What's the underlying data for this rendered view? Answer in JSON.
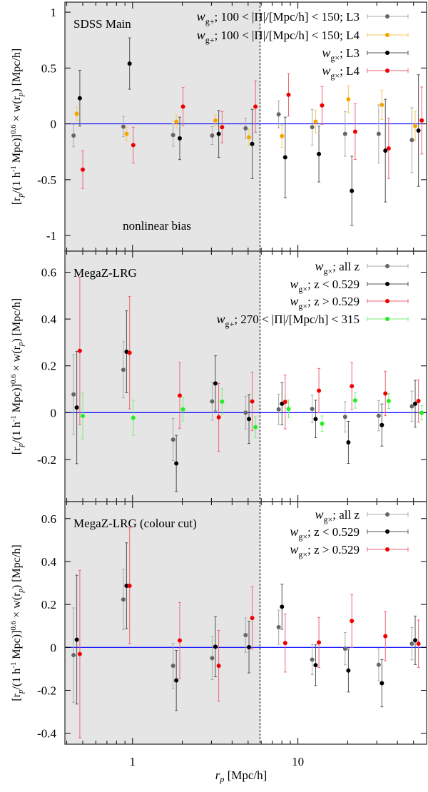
{
  "xlabel": {
    "sym": "r",
    "sub": "p",
    "rest": " [Mpc/h]"
  },
  "ylabel": {
    "a": "[r",
    "a_sub": "p",
    "b": "/(1 h",
    "b_sup": "-1",
    "c": " Mpc)]",
    "c_sup": "0.6",
    "d": " × w(r",
    "d_sub": "p",
    "e": ") [Mpc/h]"
  },
  "xscale": "log",
  "xlim": [
    0.39,
    60
  ],
  "xticks": [
    {
      "v": 1,
      "label": "1"
    },
    {
      "v": 10,
      "label": "10"
    }
  ],
  "nonlinear_cut": 5.9,
  "zero_line_color": "#0000ff",
  "shade_color": "#e5e5e5",
  "chart_data": [
    {
      "type": "scatter",
      "title": "SDSS Main",
      "annotation": "nonlinear bias",
      "ylim": [
        -1.14,
        1.09
      ],
      "yticks": [
        {
          "v": 1,
          "label": "1"
        },
        {
          "v": 0.5,
          "label": "0.5"
        },
        {
          "v": 0,
          "label": "0"
        },
        {
          "v": -0.5,
          "label": "-0.5"
        },
        {
          "v": -1,
          "label": "-1"
        }
      ],
      "series": [
        {
          "sym": "w",
          "sub": "g+",
          "name": "; 100 < |Π|/[Mpc/h] < 150; L3",
          "color": "#666666",
          "bar": "#aaaaaa",
          "x": [
            0.44,
            0.88,
            1.76,
            3.03,
            4.83,
            7.65,
            12.2,
            19.3,
            30.8,
            48.9
          ],
          "y": [
            -0.105,
            -0.025,
            -0.1,
            -0.105,
            -0.04,
            0.085,
            -0.03,
            -0.09,
            -0.09,
            -0.145
          ],
          "err": [
            0.1,
            0.09,
            0.1,
            0.08,
            0.09,
            0.12,
            0.16,
            0.2,
            0.26,
            0.29
          ]
        },
        {
          "sym": "w",
          "sub": "g+",
          "name": "; 100 < |Π|/[Mpc/h] < 150; L4",
          "color": "#f5a500",
          "bar": "#f7c860",
          "x": [
            0.46,
            0.92,
            1.84,
            3.17,
            5.06,
            8.01,
            12.8,
            20.2,
            32.2,
            51.2
          ],
          "y": [
            0.09,
            -0.09,
            0.02,
            0.03,
            -0.12,
            -0.11,
            0.02,
            0.22,
            0.17,
            -0.02
          ],
          "err": [
            0.06,
            0.06,
            0.06,
            0.05,
            0.07,
            0.1,
            0.1,
            0.12,
            0.13,
            0.13
          ]
        },
        {
          "sym": "w",
          "sub": "g×",
          "name": "; L3",
          "color": "#000000",
          "bar": "#555555",
          "x": [
            0.48,
            0.96,
            1.93,
            3.32,
            5.29,
            8.38,
            13.4,
            21.2,
            33.8,
            53.6
          ],
          "y": [
            0.23,
            0.54,
            -0.13,
            -0.09,
            -0.18,
            -0.3,
            -0.27,
            -0.6,
            -0.24,
            -0.06
          ],
          "err": [
            0.25,
            0.23,
            0.19,
            0.21,
            0.31,
            0.36,
            0.25,
            0.31,
            0.46,
            0.5
          ]
        },
        {
          "sym": "w",
          "sub": "g×",
          "name": "; L4",
          "color": "#ee0000",
          "bar": "#ee6677",
          "x": [
            0.5,
            1.01,
            2.02,
            3.48,
            5.54,
            8.78,
            14.0,
            22.2,
            35.4,
            56.1
          ],
          "y": [
            -0.41,
            -0.19,
            0.155,
            -0.03,
            0.155,
            0.26,
            0.165,
            -0.07,
            -0.22,
            0.03
          ],
          "err": [
            0.17,
            0.16,
            0.17,
            0.14,
            0.23,
            0.19,
            0.17,
            0.25,
            0.27,
            0.3
          ]
        }
      ]
    },
    {
      "type": "scatter",
      "title": "MegaZ-LRG",
      "ylim": [
        -0.38,
        0.69
      ],
      "yticks": [
        {
          "v": 0.6,
          "label": "0.6"
        },
        {
          "v": 0.4,
          "label": "0.4"
        },
        {
          "v": 0.2,
          "label": "0.2"
        },
        {
          "v": 0,
          "label": "0"
        },
        {
          "v": -0.2,
          "label": "-0.2"
        }
      ],
      "series": [
        {
          "sym": "w",
          "sub": "g×",
          "name": "; all z",
          "color": "#666666",
          "bar": "#aaaaaa",
          "x": [
            0.44,
            0.88,
            1.76,
            3.03,
            4.83,
            7.65,
            12.2,
            19.3,
            30.8,
            48.9
          ],
          "y": [
            0.078,
            0.183,
            -0.115,
            0.048,
            0.0,
            0.014,
            0.016,
            -0.018,
            -0.013,
            0.027
          ],
          "err": [
            0.17,
            0.12,
            0.09,
            0.08,
            0.07,
            0.065,
            0.058,
            0.065,
            0.065,
            0.065
          ]
        },
        {
          "sym": "w",
          "sub": "g×",
          "name": "; z < 0.529",
          "color": "#000000",
          "bar": "#555555",
          "x": [
            0.46,
            0.92,
            1.84,
            3.17,
            5.06,
            8.01,
            12.8,
            20.2,
            32.2,
            51.2
          ],
          "y": [
            0.022,
            0.26,
            -0.217,
            0.125,
            -0.027,
            0.038,
            -0.027,
            -0.127,
            -0.053,
            0.038
          ],
          "err": [
            0.24,
            0.175,
            0.12,
            0.118,
            0.105,
            0.09,
            0.08,
            0.09,
            0.09,
            0.1
          ]
        },
        {
          "sym": "w",
          "sub": "g×",
          "name": "; z > 0.529",
          "color": "#ee0000",
          "bar": "#ee6677",
          "x": [
            0.48,
            0.96,
            1.93,
            3.32,
            5.29,
            8.38,
            13.4,
            21.2,
            33.8,
            53.6
          ],
          "y": [
            0.264,
            0.256,
            0.073,
            -0.02,
            0.048,
            0.046,
            0.094,
            0.113,
            0.082,
            0.05
          ],
          "err": [
            0.315,
            0.24,
            0.14,
            0.145,
            0.125,
            0.115,
            0.095,
            0.1,
            0.095,
            0.09
          ]
        },
        {
          "sym": "w",
          "sub": "g+",
          "name": "; 270 < |Π|/[Mpc/h] < 315",
          "color": "#22ee22",
          "bar": "#77ee77",
          "x": [
            0.5,
            1.01,
            2.02,
            3.48,
            5.54,
            8.78,
            14.0,
            22.2,
            35.4,
            56.1
          ],
          "y": [
            -0.014,
            -0.022,
            0.014,
            0.047,
            -0.062,
            0.016,
            -0.047,
            0.052,
            0.05,
            -0.001
          ],
          "err": [
            0.098,
            0.075,
            0.05,
            0.055,
            0.045,
            0.038,
            0.033,
            0.033,
            0.032,
            0.03
          ]
        }
      ]
    },
    {
      "type": "scatter",
      "title": "MegaZ-LRG (colour cut)",
      "ylim": [
        -0.451,
        0.679
      ],
      "yticks": [
        {
          "v": 0.6,
          "label": "0.6"
        },
        {
          "v": 0.4,
          "label": "0.4"
        },
        {
          "v": 0.2,
          "label": "0.2"
        },
        {
          "v": 0,
          "label": "0"
        },
        {
          "v": -0.2,
          "label": "-0.2"
        },
        {
          "v": -0.4,
          "label": "-0.4"
        }
      ],
      "series": [
        {
          "sym": "w",
          "sub": "g×",
          "name": "; all z",
          "color": "#666666",
          "bar": "#aaaaaa",
          "x": [
            0.44,
            0.88,
            1.76,
            3.03,
            4.83,
            7.65,
            12.2,
            19.3,
            30.8,
            48.9
          ],
          "y": [
            -0.036,
            0.223,
            -0.086,
            -0.05,
            0.057,
            0.094,
            -0.057,
            -0.006,
            -0.081,
            0.017
          ],
          "err": [
            0.22,
            0.14,
            0.105,
            0.1,
            0.08,
            0.08,
            0.07,
            0.075,
            0.075,
            0.075
          ]
        },
        {
          "sym": "w",
          "sub": "g×",
          "name": "; z < 0.529",
          "color": "#000000",
          "bar": "#555555",
          "x": [
            0.46,
            0.92,
            1.84,
            3.17,
            5.06,
            8.01,
            12.8,
            20.2,
            32.2,
            51.2
          ],
          "y": [
            0.036,
            0.287,
            -0.154,
            0.003,
            0.001,
            0.189,
            -0.083,
            -0.108,
            -0.167,
            0.033
          ],
          "err": [
            0.3,
            0.2,
            0.14,
            0.14,
            0.12,
            0.105,
            0.095,
            0.1,
            0.11,
            0.113
          ]
        },
        {
          "sym": "w",
          "sub": "g×",
          "name": "; z > 0.529",
          "color": "#ee0000",
          "bar": "#ee6677",
          "x": [
            0.48,
            0.96,
            1.93,
            3.32,
            5.29,
            8.38,
            13.4,
            21.2,
            33.8,
            53.6
          ],
          "y": [
            -0.031,
            0.287,
            0.032,
            -0.086,
            0.137,
            0.02,
            0.023,
            0.123,
            0.052,
            0.017
          ],
          "err": [
            0.39,
            0.27,
            0.177,
            0.165,
            0.145,
            0.135,
            0.117,
            0.122,
            0.115,
            0.11
          ]
        }
      ]
    }
  ]
}
